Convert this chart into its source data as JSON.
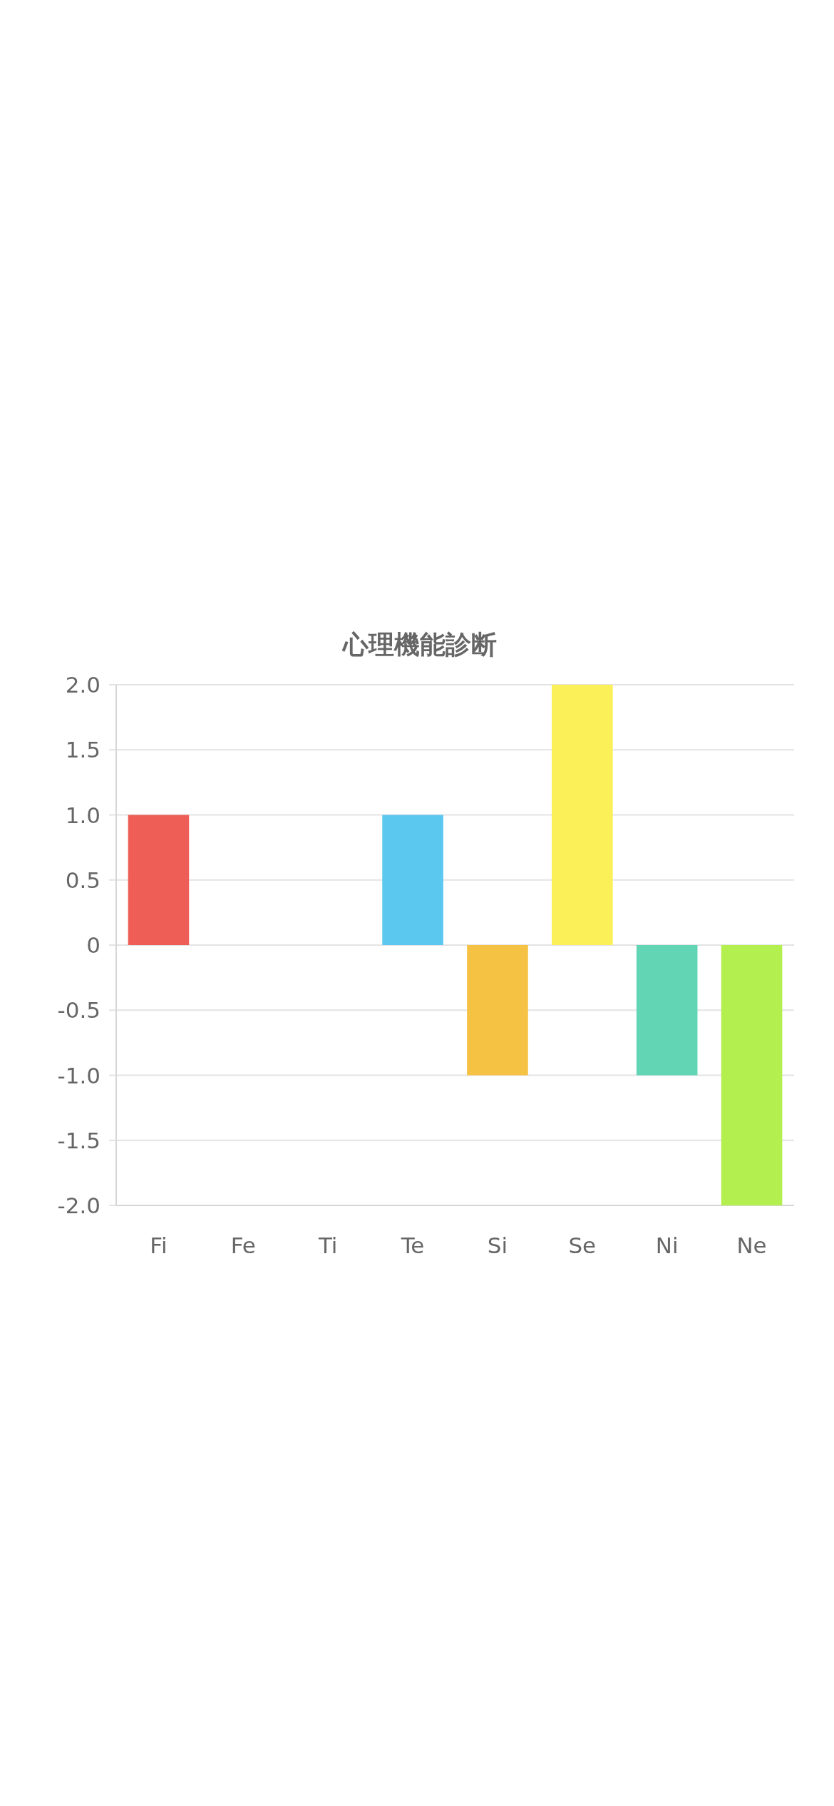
{
  "chart_data": {
    "type": "bar",
    "title": "心理機能診断",
    "categories": [
      "Fi",
      "Fe",
      "Ti",
      "Te",
      "Si",
      "Se",
      "Ni",
      "Ne"
    ],
    "values": [
      1,
      0,
      0,
      1,
      -1,
      2,
      -1,
      -2
    ],
    "colors": [
      "#ee5e57",
      null,
      null,
      "#5bc8ef",
      "#f5c244",
      "#fbf057",
      "#62d5b4",
      "#b2ef4f"
    ],
    "ylim": [
      -2,
      2
    ],
    "yticks": [
      {
        "value": -2,
        "label": "-2.0"
      },
      {
        "value": -1.5,
        "label": "-1.5"
      },
      {
        "value": -1,
        "label": "-1.0"
      },
      {
        "value": -0.5,
        "label": "-0.5"
      },
      0,
      {
        "value": 0.5,
        "label": "0.5"
      },
      {
        "value": 1,
        "label": "1.0"
      },
      {
        "value": 1.5,
        "label": "1.5"
      },
      {
        "value": 2,
        "label": "2.0"
      }
    ],
    "grid": "y"
  }
}
